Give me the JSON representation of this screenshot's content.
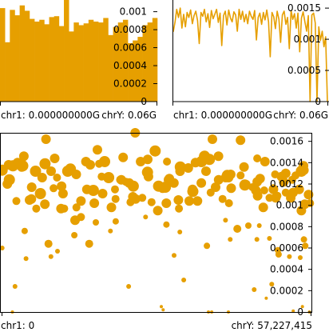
{
  "colors": {
    "series": "#E69F00",
    "axis": "#000000",
    "background": "#FFFFFF"
  },
  "chart_data": [
    {
      "id": "top-left",
      "type": "bar",
      "title": "",
      "xlabel": "",
      "ylabel": "",
      "ylim": [
        0,
        0.00113
      ],
      "y_ticks": [
        "0.001",
        "0.0008",
        "0.0006",
        "0.0004",
        "0.0002",
        "0"
      ],
      "y_tick_values": [
        0.001,
        0.0008,
        0.0006,
        0.0004,
        0.0002,
        0
      ],
      "x_tick_labels": [
        "chr1: 0.000000000G",
        "chrY: 0.06G"
      ],
      "series_color": "#E69F00",
      "values": [
        0.00104,
        0.00066,
        0.00102,
        0.00096,
        0.00107,
        0.00101,
        0.00092,
        0.00089,
        0.00091,
        0.00086,
        0.00094,
        0.00095,
        0.00084,
        0.00113,
        0.00078,
        0.00088,
        0.00085,
        0.00087,
        0.00091,
        0.00089,
        0.00088,
        0.00093,
        0.00074,
        0.00083,
        0.00088,
        0.00091,
        0.00065,
        0.00068,
        0.00072,
        0.00085,
        0.00088,
        0.00093
      ]
    },
    {
      "id": "top-right",
      "type": "line",
      "title": "",
      "xlabel": "",
      "ylabel": "",
      "ylim": [
        0,
        0.00163
      ],
      "y_ticks": [
        "0.0015",
        "0.001",
        "0.0005",
        "0"
      ],
      "y_tick_values": [
        0.0015,
        0.001,
        0.0005,
        0
      ],
      "x_tick_labels": [
        "chr1: 0.000000000G",
        "chrY: 0.06G"
      ],
      "series_color": "#E69F00",
      "values": [
        0.00112,
        0.00128,
        0.00148,
        0.00135,
        0.0015,
        0.00118,
        0.0014,
        0.0012,
        0.00143,
        0.00135,
        0.00147,
        0.00125,
        0.00138,
        0.00145,
        0.0013,
        0.00093,
        0.00143,
        0.00137,
        0.00148,
        0.00128,
        0.00141,
        0.00119,
        0.00146,
        0.00133,
        0.0014,
        0.00148,
        0.00127,
        0.00142,
        0.0009,
        0.00138,
        0.00145,
        0.00123,
        0.00147,
        0.00134,
        0.00128,
        0.00144,
        0.00139,
        0.00113,
        0.00148,
        0.00132,
        0.00145,
        0.00128,
        0.0014,
        0.00125,
        0.00145,
        0.00137,
        0.00132,
        0.00146,
        0.00099,
        0.00135,
        0.00142,
        0.00124,
        0.00143,
        0.00131,
        0.00147,
        0.00128,
        0.00072,
        0.00143,
        0.00136,
        0.00117,
        0.00145,
        0.00132,
        0.00095,
        0.00139,
        0.00145,
        0.00124,
        0.00135,
        0.00085,
        0.00146,
        0.00132,
        0.00141,
        0.00118,
        0.00142,
        0.0008,
        0.00134,
        0.00144,
        0.00128,
        0.00113,
        0.00138,
        0.0,
        0.00139,
        0.00142,
        0.00126,
        0.0,
        0.0012,
        0.00098,
        0.00113,
        0.00088,
        0.00104,
        0.0
      ]
    },
    {
      "id": "bottom",
      "type": "scatter",
      "title": "",
      "xlabel": "",
      "ylabel": "",
      "xlim": [
        0,
        57227415
      ],
      "ylim": [
        0,
        0.00168
      ],
      "y_ticks": [
        "0.0016",
        "0.0014",
        "0.0012",
        "0.001",
        "0.0008",
        "0.0006",
        "0.0004",
        "0.0002",
        "0"
      ],
      "y_tick_values": [
        0.0016,
        0.0014,
        0.0012,
        0.001,
        0.0008,
        0.0006,
        0.0004,
        0.0002,
        0
      ],
      "x_tick_labels": [
        "chr1: 0",
        "chrY: 57,227,415"
      ],
      "series_color": "#E69F00",
      "points": [
        [
          100000,
          0.00133,
          7
        ],
        [
          1430000,
          0.00124,
          7
        ],
        [
          2740000,
          0.00104,
          5
        ],
        [
          4120000,
          0.00146,
          6
        ],
        [
          5510000,
          0.00106,
          6
        ],
        [
          6420000,
          0.00097,
          5
        ],
        [
          7510000,
          0.00126,
          6
        ],
        [
          8050000,
          0.00139,
          7
        ],
        [
          8680000,
          0.00064,
          5
        ],
        [
          10260000,
          0.00126,
          5
        ],
        [
          11000000,
          0.00097,
          6
        ],
        [
          11590000,
          0.00097,
          5
        ],
        [
          12740000,
          0.00134,
          7
        ],
        [
          13850000,
          0.00098,
          5
        ],
        [
          14700000,
          0.00089,
          5
        ],
        [
          15800000,
          0.00115,
          6
        ],
        [
          16220000,
          0.00064,
          5
        ],
        [
          16990000,
          0.00114,
          7
        ],
        [
          17170000,
          0.00102,
          6
        ],
        [
          18530000,
          0.00127,
          5
        ],
        [
          19830000,
          0.00126,
          7
        ],
        [
          20330000,
          0.00098,
          6
        ],
        [
          21100000,
          0.00106,
          5
        ],
        [
          22510000,
          0.00145,
          6
        ],
        [
          23020000,
          0.00122,
          5
        ],
        [
          23870000,
          0.00103,
          5
        ],
        [
          24380000,
          0.00118,
          7
        ],
        [
          25750000,
          0.00141,
          6
        ],
        [
          27010000,
          0.00131,
          7
        ],
        [
          27770000,
          0.00103,
          5
        ],
        [
          28930000,
          0.00095,
          6
        ],
        [
          29820000,
          0.00116,
          6
        ],
        [
          30330000,
          0.00117,
          7
        ],
        [
          30910000,
          0.00124,
          6
        ],
        [
          31910000,
          0.00121,
          6
        ],
        [
          33100000,
          0.00136,
          7
        ],
        [
          34580000,
          0.00135,
          6
        ],
        [
          35420000,
          0.00113,
          7
        ],
        [
          36280000,
          0.00104,
          6
        ],
        [
          37020000,
          0.00141,
          7
        ],
        [
          38490000,
          0.00143,
          7
        ],
        [
          39630000,
          0.00117,
          6
        ],
        [
          40190000,
          0.00124,
          6
        ],
        [
          41490000,
          0.00126,
          6
        ],
        [
          42100000,
          0.00102,
          5
        ],
        [
          42520000,
          0.00116,
          6
        ],
        [
          43650000,
          0.00078,
          5
        ],
        [
          44900000,
          0.00136,
          6
        ],
        [
          46440000,
          0.00117,
          5
        ],
        [
          47330000,
          0.00122,
          6
        ],
        [
          48460000,
          0.00098,
          6
        ],
        [
          48640000,
          0.00114,
          5
        ],
        [
          49610000,
          0.00107,
          5
        ],
        [
          50330000,
          0.00115,
          6
        ],
        [
          51070000,
          0.00109,
          5
        ],
        [
          51830000,
          0.00127,
          6
        ],
        [
          52610000,
          0.00112,
          5
        ],
        [
          53550000,
          0.00107,
          6
        ],
        [
          54430000,
          0.00128,
          5
        ],
        [
          55510000,
          0.00132,
          7
        ],
        [
          56130000,
          0.00101,
          6
        ],
        [
          56850000,
          0.0011,
          6
        ],
        [
          1300000,
          0.00138,
          6
        ],
        [
          3920000,
          0.00137,
          7
        ],
        [
          6290000,
          0.00132,
          7
        ],
        [
          8020000,
          0.00101,
          6
        ],
        [
          11110000,
          0.00118,
          6
        ],
        [
          13610000,
          0.00086,
          6
        ],
        [
          16420000,
          0.00138,
          6
        ],
        [
          19070000,
          0.00141,
          7
        ],
        [
          21940000,
          0.00124,
          5
        ],
        [
          24810000,
          0.00106,
          6
        ],
        [
          27060000,
          0.00143,
          6
        ],
        [
          30500000,
          0.00102,
          6
        ],
        [
          32850000,
          0.00097,
          5
        ],
        [
          34750000,
          0.00104,
          6
        ],
        [
          37850000,
          0.00132,
          6
        ],
        [
          40160000,
          0.00146,
          6
        ],
        [
          42420000,
          0.00129,
          6
        ],
        [
          45360000,
          0.0012,
          5
        ],
        [
          47870000,
          0.00125,
          6
        ],
        [
          50650000,
          0.00129,
          5
        ],
        [
          53810000,
          0.00124,
          5
        ],
        [
          55980000,
          0.00133,
          6
        ],
        [
          1070000,
          0.0012,
          6
        ],
        [
          3720000,
          0.00136,
          6
        ],
        [
          7190000,
          0.00111,
          7
        ],
        [
          9840000,
          0.00144,
          6
        ],
        [
          12250000,
          0.00132,
          7
        ],
        [
          14700000,
          0.00104,
          6
        ],
        [
          18060000,
          0.00139,
          5
        ],
        [
          21000000,
          0.00115,
          5
        ],
        [
          24310000,
          0.00108,
          6
        ],
        [
          27190000,
          0.00127,
          6
        ],
        [
          30620000,
          0.00141,
          5
        ],
        [
          32740000,
          0.00105,
          6
        ],
        [
          35900000,
          0.0014,
          6
        ],
        [
          38710000,
          0.00112,
          5
        ],
        [
          41800000,
          0.00128,
          7
        ],
        [
          44260000,
          0.00128,
          5
        ],
        [
          47080000,
          0.00114,
          6
        ],
        [
          50270000,
          0.00116,
          5
        ],
        [
          52620000,
          0.0013,
          6
        ],
        [
          55510000,
          0.00095,
          6
        ],
        [
          2100000,
          0.00137,
          7
        ],
        [
          5170000,
          0.00105,
          6
        ],
        [
          9620000,
          0.00116,
          5
        ],
        [
          13820000,
          0.00129,
          6
        ],
        [
          18710000,
          0.00111,
          6
        ],
        [
          22160000,
          0.00124,
          6
        ],
        [
          26050000,
          0.00107,
          5
        ],
        [
          29070000,
          0.00118,
          7
        ],
        [
          33050000,
          0.00132,
          6
        ],
        [
          36990000,
          0.00121,
          6
        ],
        [
          40920000,
          0.00106,
          5
        ],
        [
          45040000,
          0.00119,
          7
        ],
        [
          48770000,
          0.00141,
          6
        ],
        [
          52250000,
          0.00122,
          6
        ],
        [
          55120000,
          0.00115,
          6
        ],
        [
          9170000,
          0.00132,
          6
        ],
        [
          23630000,
          0.00121,
          6
        ],
        [
          47410000,
          0.00109,
          6
        ],
        [
          53980000,
          0.00112,
          6
        ],
        [
          2960000,
          0.0014,
          6
        ],
        [
          31070000,
          0.00125,
          6
        ],
        [
          35350000,
          0.00115,
          6
        ],
        [
          5580000,
          0.00117,
          6
        ],
        [
          11370000,
          0.00111,
          6
        ],
        [
          15620000,
          0.00141,
          6
        ],
        [
          28440000,
          0.00151,
          7
        ],
        [
          37580000,
          0.00146,
          7
        ],
        [
          42020000,
          0.00126,
          6
        ],
        [
          50760000,
          0.00107,
          6
        ],
        [
          55910000,
          0.00137,
          6
        ],
        [
          57120000,
          0.00102,
          5
        ],
        [
          8220000,
          0.00162,
          6
        ],
        [
          17740000,
          0.00152,
          6
        ],
        [
          24740000,
          0.00168,
          6
        ],
        [
          39040000,
          0.00162,
          6
        ],
        [
          44250000,
          0.00161,
          6
        ],
        [
          47340000,
          0.00144,
          5
        ],
        [
          4270000,
          0.00076,
          4
        ],
        [
          13470000,
          0.00072,
          4
        ],
        [
          17450000,
          0.00084,
          4
        ],
        [
          21130000,
          0.00085,
          4
        ],
        [
          30520000,
          0.00082,
          4
        ],
        [
          38020000,
          0.00062,
          4
        ],
        [
          45690000,
          0.00081,
          4
        ],
        [
          51170000,
          0.00058,
          4
        ],
        [
          55980000,
          0.00068,
          4
        ],
        [
          9140000,
          0.00052,
          3
        ],
        [
          16350000,
          0.00063,
          3
        ],
        [
          31940000,
          0.00053,
          3
        ],
        [
          47270000,
          0.00068,
          3
        ],
        [
          51300000,
          0.00054,
          4
        ],
        [
          56230000,
          0.00062,
          4
        ],
        [
          20160000,
          0.00076,
          3
        ],
        [
          41470000,
          0.00086,
          3
        ],
        [
          55310000,
          0.00051,
          3
        ],
        [
          10350000,
          0.00057,
          3
        ],
        [
          4520000,
          0.0005,
          3
        ],
        [
          26660000,
          0.00089,
          3
        ],
        [
          33000000,
          0.00075,
          3
        ],
        [
          42340000,
          0.00068,
          3
        ],
        [
          49600000,
          0.00069,
          3
        ],
        [
          53300000,
          0.00052,
          3
        ],
        [
          47720000,
          0.00081,
          3
        ],
        [
          2480000,
          0.00024,
          3
        ],
        [
          23530000,
          0.00024,
          3
        ],
        [
          33730000,
          0.0003,
          3
        ],
        [
          46780000,
          0.00021,
          3
        ],
        [
          50020000,
          0.00026,
          3
        ],
        [
          29570000,
          5e-05,
          2
        ],
        [
          29920000,
          2e-05,
          2
        ],
        [
          55700000,
          5e-05,
          2
        ],
        [
          54000000,
          1e-05,
          2
        ],
        [
          2000000,
          0.0,
          2
        ],
        [
          38300000,
          0.0,
          2
        ],
        [
          38900000,
          0.0,
          2
        ],
        [
          42000000,
          0.0,
          2
        ],
        [
          57000000,
          0.0,
          2
        ],
        [
          100000,
          0.0006,
          3
        ],
        [
          49000000,
          0.00013,
          2
        ]
      ]
    }
  ]
}
